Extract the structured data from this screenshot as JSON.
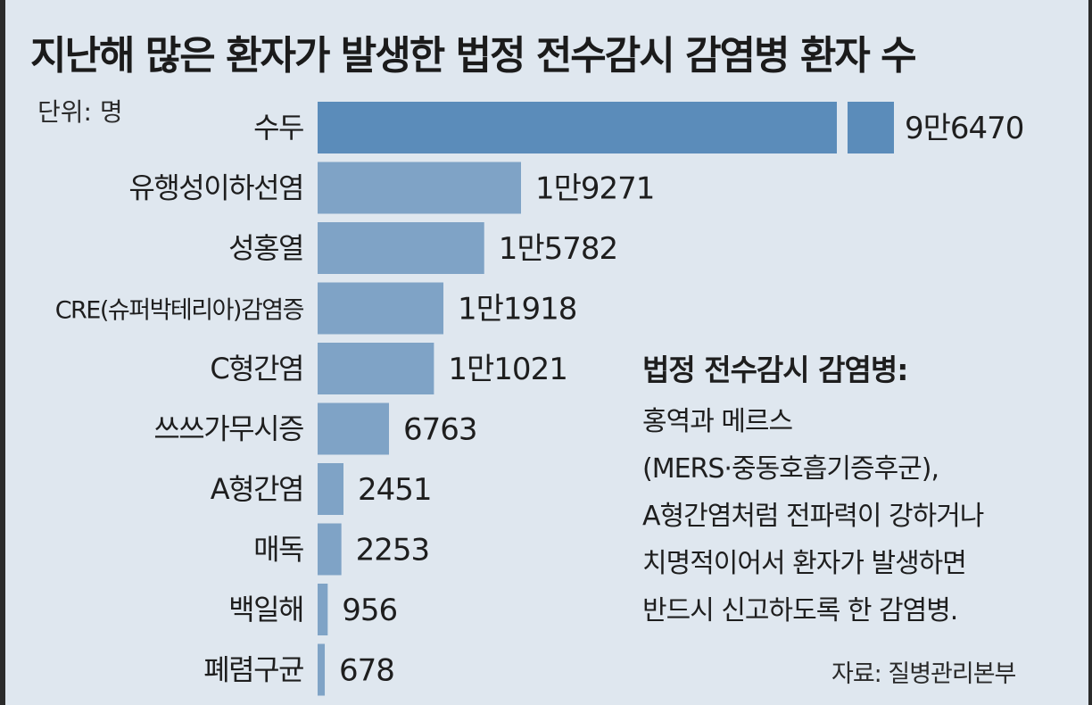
{
  "title": "지난해 많은 환자가 발생한 법정 전수감시 감염병 환자 수",
  "unit_label": "단위: 명",
  "note": {
    "heading": "법정 전수감시 감염병:",
    "lines": [
      "홍역과 메르스",
      "(MERS·중동호흡기증후군),",
      "A형간염처럼 전파력이 강하거나",
      "치명적이어서 환자가 발생하면",
      "반드시 신고하도록 한 감염병."
    ]
  },
  "source": "자료: 질병관리본부",
  "colors": {
    "background": "#dfe7ef",
    "bar_top": "#5b8cba",
    "bar": "#7fa3c6",
    "text": "#1e1e1e"
  },
  "chart_data": {
    "type": "bar",
    "orientation": "horizontal",
    "axis_break_on_top_bar": true,
    "categories": [
      "수두",
      "유행성이하선염",
      "성홍열",
      "CRE(슈퍼박테리아)감염증",
      "C형간염",
      "쓰쓰가무시증",
      "A형간염",
      "매독",
      "백일해",
      "폐렴구균"
    ],
    "values": [
      96470,
      19271,
      15782,
      11918,
      11021,
      6763,
      2451,
      2253,
      956,
      678
    ],
    "value_labels": [
      "9만6470",
      "1만9271",
      "1만5782",
      "1만1918",
      "1만1021",
      "6763",
      "2451",
      "2253",
      "956",
      "678"
    ]
  }
}
